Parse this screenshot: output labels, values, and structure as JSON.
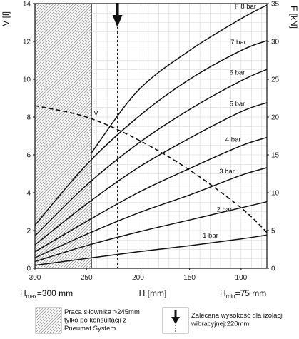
{
  "chart_data": {
    "type": "line",
    "x_axis": {
      "label": "H [mm]",
      "range": [
        300,
        75
      ],
      "ticks": [
        "300",
        "250",
        "200",
        "150",
        "100"
      ],
      "min_label": "H",
      "min_sub": "min",
      "min_value": "=75 mm",
      "max_label": "H",
      "max_sub": "max",
      "max_value": "=300 mm"
    },
    "y_left": {
      "label": "V [l]",
      "range": [
        0,
        14
      ],
      "ticks": [
        "0",
        "2",
        "4",
        "6",
        "8",
        "10",
        "12",
        "14"
      ]
    },
    "y_right": {
      "label": "F [kN]",
      "range": [
        0,
        35
      ],
      "ticks": [
        "0",
        "5",
        "10",
        "15",
        "20",
        "25",
        "30",
        "35"
      ]
    },
    "grid": true,
    "series": [
      {
        "name": "1 bar",
        "axis": "F",
        "x": [
          300,
          250,
          200,
          150,
          100,
          75
        ],
        "y": [
          0.4,
          1.3,
          2.2,
          3.0,
          3.9,
          4.4
        ]
      },
      {
        "name": "2 bar",
        "axis": "F",
        "x": [
          300,
          250,
          200,
          150,
          100,
          75
        ],
        "y": [
          0.9,
          3.0,
          4.8,
          6.4,
          8.0,
          8.8
        ]
      },
      {
        "name": "3 bar",
        "axis": "F",
        "x": [
          300,
          250,
          200,
          150,
          100,
          75
        ],
        "y": [
          1.4,
          4.5,
          7.3,
          9.7,
          12.3,
          13.3
        ]
      },
      {
        "name": "4 bar",
        "axis": "F",
        "x": [
          300,
          250,
          200,
          150,
          100,
          75
        ],
        "y": [
          2.2,
          6.2,
          10.0,
          13.2,
          16.2,
          17.3
        ]
      },
      {
        "name": "5 bar",
        "axis": "F",
        "x": [
          300,
          250,
          200,
          150,
          100,
          75
        ],
        "y": [
          3.1,
          8.5,
          13.3,
          17.2,
          20.7,
          21.9
        ]
      },
      {
        "name": "6 bar",
        "axis": "F",
        "x": [
          300,
          250,
          200,
          150,
          100,
          75
        ],
        "y": [
          4.3,
          11.0,
          16.5,
          21.0,
          24.8,
          26.3
        ]
      },
      {
        "name": "7 bar",
        "axis": "F",
        "x": [
          300,
          250,
          200,
          150,
          100,
          75
        ],
        "y": [
          5.7,
          13.7,
          20.0,
          25.0,
          28.8,
          30.1
        ]
      },
      {
        "name": "F 8 bar",
        "axis": "F",
        "x": [
          245,
          200,
          150,
          100,
          75
        ],
        "y": [
          15.3,
          23.5,
          28.8,
          33.0,
          34.8
        ]
      },
      {
        "name": "V",
        "axis": "V",
        "dashed": true,
        "x": [
          300,
          250,
          200,
          150,
          100,
          75
        ],
        "y": [
          8.6,
          8.0,
          6.8,
          5.2,
          3.2,
          1.9
        ]
      }
    ],
    "annotations": {
      "v_curve_label": "V",
      "recommended_x": 220,
      "hatched_region": [
        300,
        245
      ]
    },
    "legend": [
      {
        "symbol": "hatched-box",
        "text": [
          "Praca siłownika >245mm",
          "tylko po konsultacji z",
          "Pneumat System"
        ]
      },
      {
        "symbol": "down-arrow",
        "text": [
          "Zalecana wysokość dla izolacji",
          "wibracyjnej:220mm"
        ]
      }
    ]
  }
}
